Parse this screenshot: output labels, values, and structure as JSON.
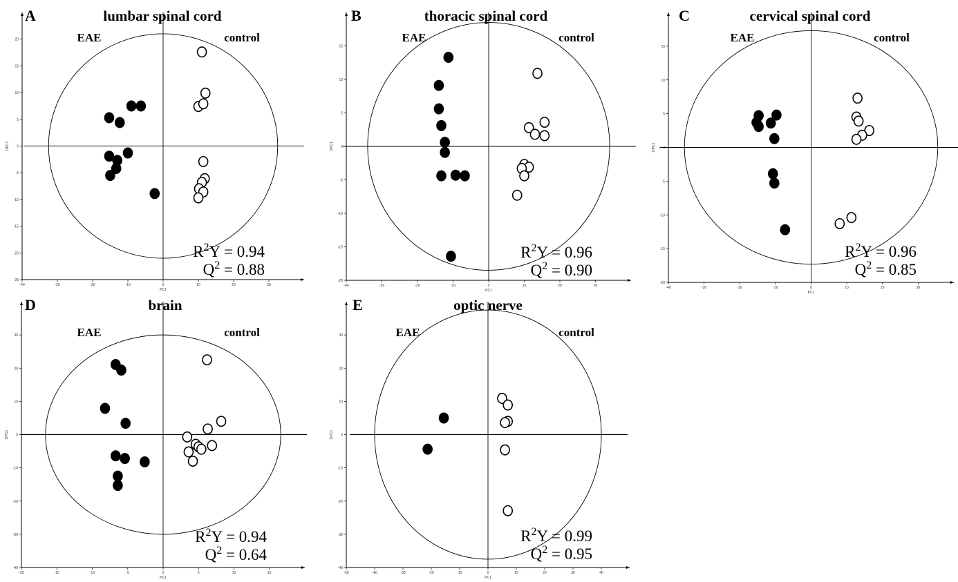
{
  "chart_data": [
    {
      "type": "scatter",
      "panel": "A",
      "title": "lumbar spinal cord",
      "xlabel": "PC1",
      "ylabel": "OPC1",
      "xlim": [
        -40,
        40
      ],
      "ylim": [
        -25,
        25
      ],
      "xticks": [
        -40,
        -30,
        -20,
        -10,
        0,
        10,
        20,
        30
      ],
      "yticks": [
        -25,
        -20,
        -15,
        -10,
        -5,
        0,
        5,
        10,
        15,
        20
      ],
      "ellipse": {
        "rx": 32.5,
        "ry": 21
      },
      "group_left": "EAE",
      "group_right": "control",
      "r2y_value": "0.94",
      "q2_value": "0.88",
      "series": [
        {
          "group": "EAE",
          "marker": "filled",
          "points": [
            [
              -9,
              7.5
            ],
            [
              -6.3,
              7.5
            ],
            [
              -15.3,
              5.3
            ],
            [
              -12.3,
              4.4
            ],
            [
              -10,
              -1.3
            ],
            [
              -15.3,
              -1.9
            ],
            [
              -13,
              -2.7
            ],
            [
              -13.3,
              -4.2
            ],
            [
              -15,
              -5.5
            ],
            [
              -2.4,
              -8.9
            ]
          ]
        },
        {
          "group": "control",
          "marker": "open",
          "points": [
            [
              11,
              17.6
            ],
            [
              12,
              9.9
            ],
            [
              10,
              7.4
            ],
            [
              11.4,
              7.9
            ],
            [
              11.4,
              -2.9
            ],
            [
              11.8,
              -6.1
            ],
            [
              11,
              -6.8
            ],
            [
              10.2,
              -8
            ],
            [
              11.4,
              -8.6
            ],
            [
              10,
              -9.7
            ]
          ]
        }
      ]
    },
    {
      "type": "scatter",
      "panel": "B",
      "title": "thoracic spinal cord",
      "xlabel": "PC1",
      "ylabel": "OPC1",
      "xlim": [
        -40,
        40
      ],
      "ylim": [
        -20,
        20
      ],
      "xticks": [
        -40,
        -30,
        -20,
        -10,
        0,
        10,
        20,
        30
      ],
      "yticks": [
        -20,
        -15,
        -10,
        -5,
        0,
        5,
        10,
        15
      ],
      "ellipse": {
        "rx": 34,
        "ry": 18.5
      },
      "group_left": "EAE",
      "group_right": "control",
      "r2y_value": "0.96",
      "q2_value": "0.90",
      "series": [
        {
          "group": "EAE",
          "marker": "filled",
          "points": [
            [
              -11.3,
              13.3
            ],
            [
              -14,
              9.1
            ],
            [
              -14,
              5.6
            ],
            [
              -13.3,
              3.1
            ],
            [
              -12.3,
              0.6
            ],
            [
              -12.3,
              -0.9
            ],
            [
              -13.3,
              -4.4
            ],
            [
              -9.3,
              -4.3
            ],
            [
              -6.7,
              -4.4
            ],
            [
              -10.6,
              -16.4
            ]
          ]
        },
        {
          "group": "control",
          "marker": "open",
          "points": [
            [
              13.7,
              10.9
            ],
            [
              15.7,
              3.6
            ],
            [
              11.3,
              2.8
            ],
            [
              13,
              1.8
            ],
            [
              15.7,
              1.6
            ],
            [
              10,
              -2.7
            ],
            [
              11.3,
              -3.1
            ],
            [
              9.3,
              -3.3
            ],
            [
              10,
              -4.4
            ],
            [
              8,
              -7.3
            ]
          ]
        }
      ]
    },
    {
      "type": "scatter",
      "panel": "C",
      "title": "cervical spinal cord",
      "xlabel": "PC1",
      "ylabel": "OPC1",
      "xlim": [
        -40,
        40
      ],
      "ylim": [
        -20,
        20
      ],
      "xticks": [
        -40,
        -30,
        -20,
        -10,
        0,
        10,
        20,
        30
      ],
      "yticks": [
        -20,
        -15,
        -10,
        -5,
        0,
        5,
        10,
        15
      ],
      "ellipse": {
        "rx": 35.5,
        "ry": 17.3
      },
      "group_left": "EAE",
      "group_right": "control",
      "r2y_value": "0.96",
      "q2_value": "0.85",
      "series": [
        {
          "group": "EAE",
          "marker": "filled",
          "points": [
            [
              -14.7,
              4.7
            ],
            [
              -9.7,
              4.8
            ],
            [
              -15.3,
              3.7
            ],
            [
              -11.3,
              3.6
            ],
            [
              -14.7,
              3.1
            ],
            [
              -10.3,
              1.3
            ],
            [
              -10.7,
              -3.9
            ],
            [
              -10.3,
              -5.3
            ],
            [
              -7.3,
              -12.2
            ]
          ]
        },
        {
          "group": "control",
          "marker": "open",
          "points": [
            [
              13,
              7.3
            ],
            [
              12.7,
              4.5
            ],
            [
              13.3,
              3.9
            ],
            [
              16.3,
              2.5
            ],
            [
              14.3,
              1.8
            ],
            [
              12.7,
              1.2
            ],
            [
              11.3,
              -10.4
            ],
            [
              8,
              -11.3
            ]
          ]
        }
      ]
    },
    {
      "type": "scatter",
      "panel": "D",
      "title": "brain",
      "xlabel": "PC1",
      "ylabel": "OPC1",
      "xlim": [
        -20,
        20
      ],
      "ylim": [
        -40,
        40
      ],
      "xticks": [
        -20,
        -15,
        -10,
        -5,
        0,
        5,
        10,
        15
      ],
      "yticks": [
        -40,
        -30,
        -20,
        -10,
        0,
        10,
        20,
        30
      ],
      "ellipse": {
        "rx": 16.6,
        "ry": 30
      },
      "group_left": "EAE",
      "group_right": "control",
      "r2y_value": "0.94",
      "q2_value": "0.64",
      "series": [
        {
          "group": "EAE",
          "marker": "filled",
          "points": [
            [
              -6.7,
              21.1
            ],
            [
              -5.9,
              19.4
            ],
            [
              -8.2,
              7.9
            ],
            [
              -5.3,
              3.4
            ],
            [
              -6.7,
              -6.4
            ],
            [
              -5.4,
              -7.2
            ],
            [
              -6.4,
              -12.5
            ],
            [
              -2.6,
              -8.2
            ],
            [
              -6.4,
              -15.3
            ]
          ]
        },
        {
          "group": "control",
          "marker": "open",
          "points": [
            [
              6.2,
              22.5
            ],
            [
              8.2,
              4
            ],
            [
              6.3,
              1.7
            ],
            [
              3.4,
              -0.7
            ],
            [
              4.6,
              -2.9
            ],
            [
              5,
              -3.7
            ],
            [
              6.9,
              -3.3
            ],
            [
              5.4,
              -4.4
            ],
            [
              3.6,
              -5.2
            ],
            [
              4.2,
              -8
            ]
          ]
        }
      ]
    },
    {
      "type": "scatter",
      "panel": "E",
      "title": "optic nerve",
      "xlabel": "PC1",
      "ylabel": "OPC1",
      "xlim": [
        -50,
        50
      ],
      "ylim": [
        -40,
        40
      ],
      "xticks": [
        -50,
        -40,
        -30,
        -20,
        -10,
        0,
        10,
        20,
        30,
        40
      ],
      "yticks": [
        -40,
        -30,
        -20,
        -10,
        0,
        10,
        20,
        30
      ],
      "ellipse": {
        "rx": 40,
        "ry": 37.5
      },
      "group_left": "EAE",
      "group_right": "control",
      "r2y_value": "0.99",
      "q2_value": "0.95",
      "series": [
        {
          "group": "EAE",
          "marker": "filled",
          "points": [
            [
              -15.6,
              5
            ],
            [
              -21.3,
              -4.4
            ]
          ]
        },
        {
          "group": "control",
          "marker": "open",
          "points": [
            [
              5,
              10.9
            ],
            [
              7,
              8.9
            ],
            [
              7,
              4
            ],
            [
              6,
              3.6
            ],
            [
              6,
              -4.6
            ],
            [
              7,
              -22.9
            ]
          ]
        }
      ]
    }
  ]
}
